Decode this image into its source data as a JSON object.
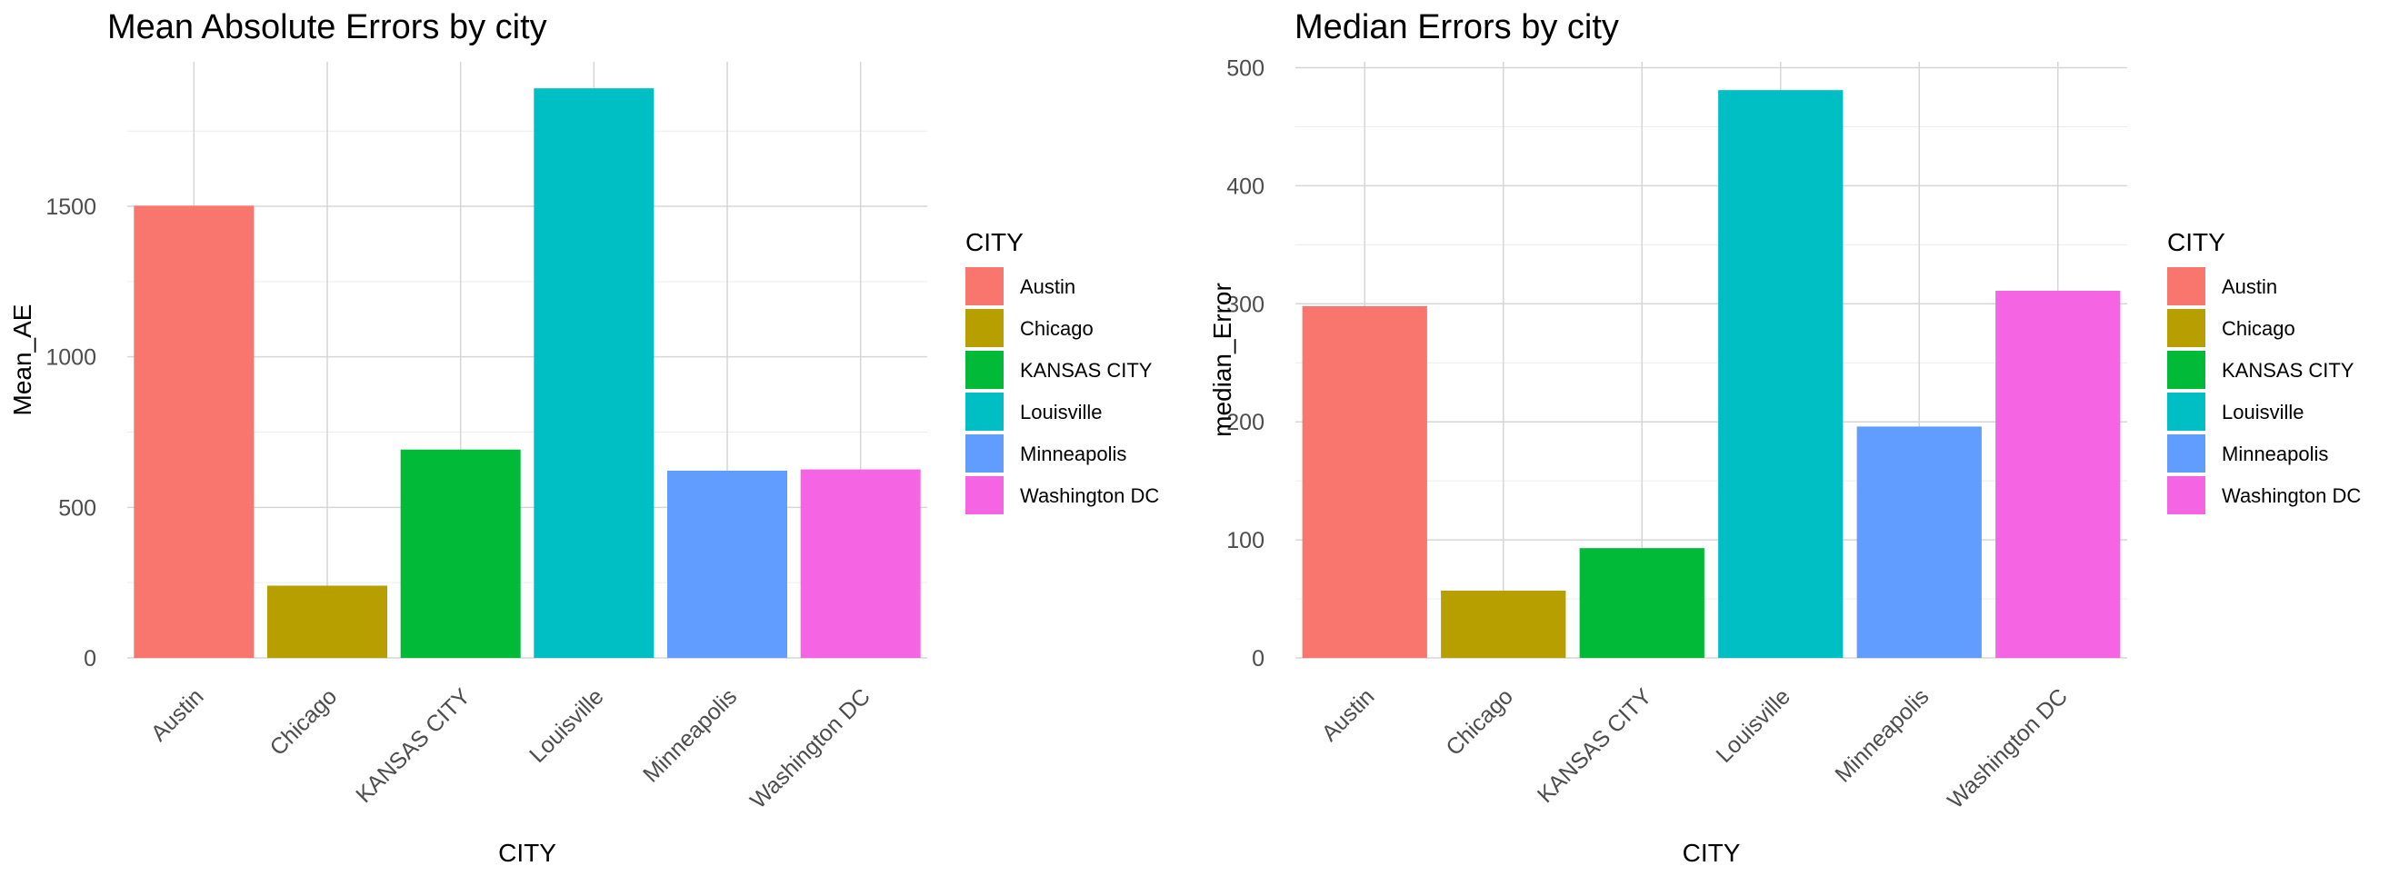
{
  "chart_data": [
    {
      "type": "bar",
      "title": "Mean Absolute Errors by city",
      "xlabel": "CITY",
      "ylabel": "Mean_AE",
      "categories": [
        "Austin",
        "Chicago",
        "KANSAS CITY",
        "Louisville",
        "Minneapolis",
        "Washington DC"
      ],
      "values": [
        1502,
        240,
        692,
        1892,
        622,
        626
      ],
      "ylim": [
        0,
        1980
      ],
      "yticks": [
        0,
        500,
        1000,
        1500
      ],
      "grid": true,
      "legend_title": "CITY",
      "legend_position": "right"
    },
    {
      "type": "bar",
      "title": "Median Errors by city",
      "xlabel": "CITY",
      "ylabel": "median_Error",
      "categories": [
        "Austin",
        "Chicago",
        "KANSAS CITY",
        "Louisville",
        "Minneapolis",
        "Washington DC"
      ],
      "values": [
        298,
        57,
        93,
        481,
        196,
        311
      ],
      "ylim": [
        0,
        505
      ],
      "yticks": [
        0,
        100,
        200,
        300,
        400,
        500
      ],
      "grid": true,
      "legend_title": "CITY",
      "legend_position": "right"
    }
  ],
  "colors": {
    "Austin": "#F8766D",
    "Chicago": "#B79F00",
    "KANSAS CITY": "#00BA38",
    "Louisville": "#00BFC4",
    "Minneapolis": "#619CFF",
    "Washington DC": "#F564E3"
  }
}
